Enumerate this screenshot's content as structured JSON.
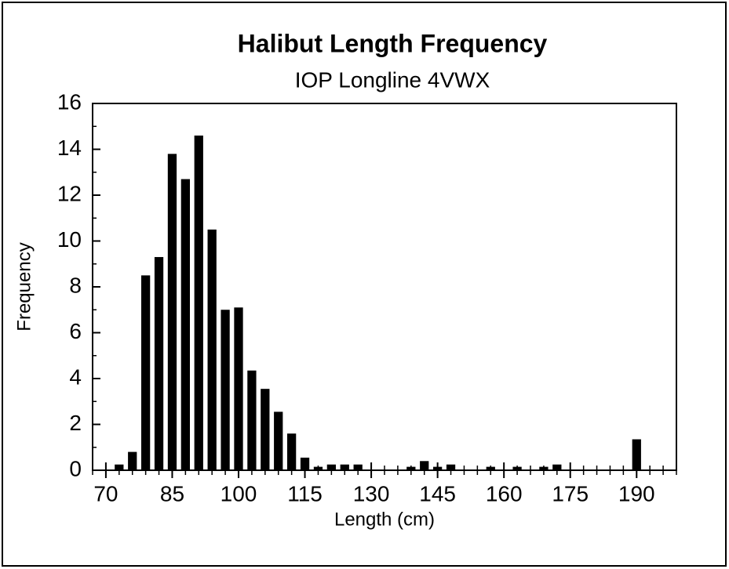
{
  "chart_data": {
    "type": "bar",
    "title": "Halibut Length Frequency",
    "subtitle": "IOP Longline 4VWX",
    "x_label": "Length (cm)",
    "y_label": "Frequency",
    "x": [
      73,
      76,
      79,
      82,
      85,
      88,
      91,
      94,
      97,
      100,
      103,
      106,
      109,
      112,
      115,
      118,
      121,
      124,
      127,
      139,
      142,
      145,
      148,
      157,
      163,
      169,
      172,
      190
    ],
    "values": [
      0.25,
      0.8,
      8.5,
      9.3,
      13.8,
      12.7,
      14.6,
      10.5,
      7.0,
      7.1,
      4.35,
      3.55,
      2.55,
      1.6,
      0.55,
      0.15,
      0.25,
      0.25,
      0.25,
      0.15,
      0.4,
      0.15,
      0.25,
      0.15,
      0.15,
      0.15,
      0.25,
      1.35
    ],
    "color": "#000000",
    "xlim": [
      67,
      199
    ],
    "xticks": [
      70,
      85,
      100,
      115,
      130,
      145,
      160,
      175,
      190
    ],
    "ylim": [
      0,
      16
    ],
    "yticks": [
      0,
      2,
      4,
      6,
      8,
      10,
      12,
      14,
      16
    ],
    "grid": false
  }
}
